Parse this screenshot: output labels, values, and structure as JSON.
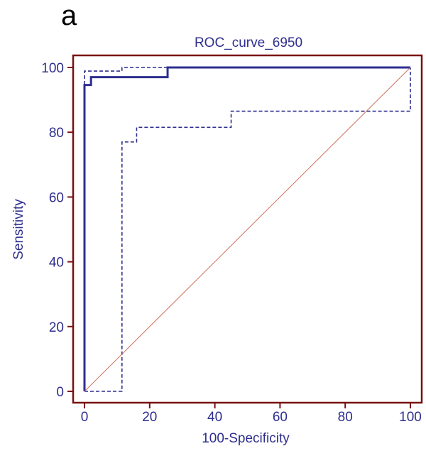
{
  "panel_label": "a",
  "chart_data": {
    "type": "line",
    "title": "ROC_curve_6950",
    "xlabel": "100-Specificity",
    "ylabel": "Sensitivity",
    "xlim": [
      0,
      100
    ],
    "ylim": [
      0,
      100
    ],
    "xticks": [
      0,
      20,
      40,
      60,
      80,
      100
    ],
    "yticks": [
      0,
      20,
      40,
      60,
      80,
      100
    ],
    "grid": false,
    "colors": {
      "frame": "#7a1010",
      "curve": "#2e2e8f",
      "diagonal": "#d0705a",
      "text": "#2e2e8f"
    },
    "series": [
      {
        "style": "solid",
        "x": [
          0,
          0,
          2,
          2,
          25.5,
          25.5,
          100
        ],
        "y": [
          0,
          94.6,
          94.6,
          97,
          97,
          100,
          100
        ]
      },
      {
        "style": "dashed",
        "x": [
          0,
          11.5,
          11.5,
          16,
          16,
          45,
          45,
          100,
          100
        ],
        "y": [
          0,
          0,
          77,
          77,
          81.5,
          81.5,
          86.5,
          86.5,
          100
        ]
      },
      {
        "style": "dashed",
        "x": [
          0,
          0,
          1,
          1,
          11.5,
          11.5,
          100
        ],
        "y": [
          0,
          98.9,
          98.9,
          98.9,
          98.9,
          100,
          100
        ]
      },
      {
        "style": "diagonal",
        "x": [
          0,
          100
        ],
        "y": [
          0,
          100
        ]
      }
    ]
  }
}
